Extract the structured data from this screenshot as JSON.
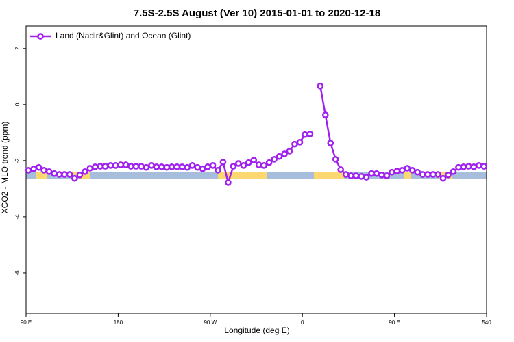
{
  "chart_data": {
    "type": "line",
    "title": "7.5S-2.5S August (Ver 10)   2015-01-01 to 2020-12-18",
    "x_label": "Longitude (deg E)",
    "y_label": "XCO2 - MLO trend (ppm)",
    "x": [
      92.5,
      97.5,
      102.5,
      107.5,
      112.5,
      117.5,
      122.5,
      127.5,
      132.5,
      137.5,
      142.5,
      147.5,
      152.5,
      157.5,
      162.5,
      167.5,
      172.5,
      177.5,
      182.5,
      187.5,
      192.5,
      197.5,
      202.5,
      207.5,
      212.5,
      217.5,
      222.5,
      227.5,
      232.5,
      237.5,
      242.5,
      247.5,
      252.5,
      257.5,
      262.5,
      267.5,
      272.5,
      277.5,
      282.5,
      287.5,
      292.5,
      297.5,
      302.5,
      307.5,
      312.5,
      317.5,
      322.5,
      327.5,
      332.5,
      337.5,
      342.5,
      347.5,
      352.5,
      357.5,
      362.5,
      367.5,
      372.5,
      377.5,
      382.5,
      387.5,
      392.5,
      397.5,
      402.5,
      407.5,
      412.5,
      417.5,
      422.5,
      427.5,
      432.5,
      437.5,
      442.5,
      447.5,
      452.5,
      457.5,
      462.5,
      467.5,
      472.5,
      477.5,
      482.5,
      487.5,
      492.5,
      497.5,
      502.5,
      507.5,
      512.5,
      517.5,
      522.5,
      527.5,
      532.5,
      537.5
    ],
    "series": [
      {
        "name": "Land (Nadir&Glint) and Ocean (Glint)",
        "color": "#a020f0",
        "values": [
          -2.34,
          -2.29,
          -2.24,
          -2.34,
          -2.39,
          -2.46,
          -2.49,
          -2.49,
          -2.49,
          -2.63,
          -2.51,
          -2.39,
          -2.27,
          -2.22,
          -2.2,
          -2.2,
          -2.17,
          -2.17,
          -2.15,
          -2.15,
          -2.2,
          -2.2,
          -2.2,
          -2.24,
          -2.17,
          -2.22,
          -2.22,
          -2.24,
          -2.22,
          -2.22,
          -2.22,
          -2.24,
          -2.17,
          -2.24,
          -2.29,
          -2.22,
          -2.17,
          -2.34,
          -2.05,
          -2.78,
          -2.2,
          -2.1,
          -2.17,
          -2.07,
          -1.98,
          -2.15,
          -2.17,
          -2.07,
          -1.95,
          -1.85,
          -1.76,
          -1.66,
          -1.41,
          -1.34,
          -1.07,
          -1.05,
          null,
          0.66,
          -0.37,
          -1.37,
          -1.95,
          -2.32,
          -2.49,
          -2.54,
          -2.54,
          -2.56,
          -2.59,
          -2.46,
          -2.46,
          -2.51,
          -2.54,
          -2.41,
          -2.37,
          -2.34,
          -2.27,
          -2.34,
          -2.41,
          -2.49,
          -2.49,
          -2.49,
          -2.49,
          -2.63,
          -2.51,
          -2.39,
          -2.24,
          -2.22,
          -2.2,
          -2.22,
          -2.17,
          -2.2
        ]
      }
    ],
    "xlim": [
      90,
      540
    ],
    "xticks": [
      {
        "value": 90,
        "label": "90 E"
      },
      180,
      {
        "value": 270,
        "label": "90 W"
      },
      {
        "value": 360,
        "label": "0"
      },
      {
        "value": 450,
        "label": "90 E"
      },
      540
    ],
    "ylim": [
      -7.44,
      2.8
    ],
    "yticks": [
      2,
      0,
      -2,
      -4,
      -6
    ],
    "legend": "top-left"
  }
}
